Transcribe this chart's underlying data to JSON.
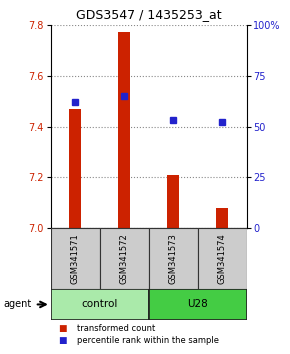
{
  "title": "GDS3547 / 1435253_at",
  "samples": [
    "GSM341571",
    "GSM341572",
    "GSM341573",
    "GSM341574"
  ],
  "bar_values": [
    7.47,
    7.77,
    7.21,
    7.08
  ],
  "bar_base": 7.0,
  "percentile_values": [
    62,
    65,
    53,
    52
  ],
  "bar_color": "#cc2200",
  "dot_color": "#2222cc",
  "ylim_left": [
    7.0,
    7.8
  ],
  "ylim_right": [
    0,
    100
  ],
  "yticks_left": [
    7.0,
    7.2,
    7.4,
    7.6,
    7.8
  ],
  "yticks_right": [
    0,
    25,
    50,
    75,
    100
  ],
  "ytick_right_labels": [
    "0",
    "25",
    "50",
    "75",
    "100%"
  ],
  "groups": [
    {
      "label": "control",
      "indices": [
        0,
        1
      ],
      "color": "#aaeaaa"
    },
    {
      "label": "U28",
      "indices": [
        2,
        3
      ],
      "color": "#44cc44"
    }
  ],
  "legend_items": [
    {
      "label": "transformed count",
      "color": "#cc2200"
    },
    {
      "label": "percentile rank within the sample",
      "color": "#2222cc"
    }
  ],
  "bar_width": 0.25,
  "grid_color": "#888888",
  "label_box_color": "#cccccc",
  "label_box_edge": "#333333",
  "group_box_edge": "#222222"
}
